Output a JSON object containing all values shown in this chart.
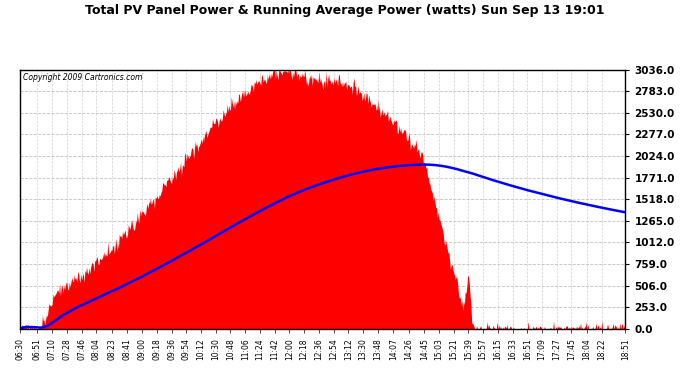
{
  "title": "Total PV Panel Power & Running Average Power (watts) Sun Sep 13 19:01",
  "copyright": "Copyright 2009 Cartronics.com",
  "background_color": "#ffffff",
  "plot_bg_color": "#ffffff",
  "fill_color": "#ff0000",
  "line_color": "#0000ff",
  "grid_color_h": "#bbbbbb",
  "grid_color_v": "#cccccc",
  "yticks": [
    0.0,
    253.0,
    506.0,
    759.0,
    1012.0,
    1265.0,
    1518.0,
    1771.0,
    2024.0,
    2277.0,
    2530.0,
    2783.0,
    3036.0
  ],
  "ymax": 3036.0,
  "x_labels": [
    "06:30",
    "06:51",
    "07:10",
    "07:28",
    "07:46",
    "08:04",
    "08:23",
    "08:41",
    "09:00",
    "09:18",
    "09:36",
    "09:54",
    "10:12",
    "10:30",
    "10:48",
    "11:06",
    "11:24",
    "11:42",
    "12:00",
    "12:18",
    "12:36",
    "12:54",
    "13:12",
    "13:30",
    "13:48",
    "14:07",
    "14:26",
    "14:45",
    "15:03",
    "15:21",
    "15:39",
    "15:57",
    "16:15",
    "16:33",
    "16:51",
    "17:09",
    "17:27",
    "17:45",
    "18:04",
    "18:22",
    "18:51"
  ]
}
